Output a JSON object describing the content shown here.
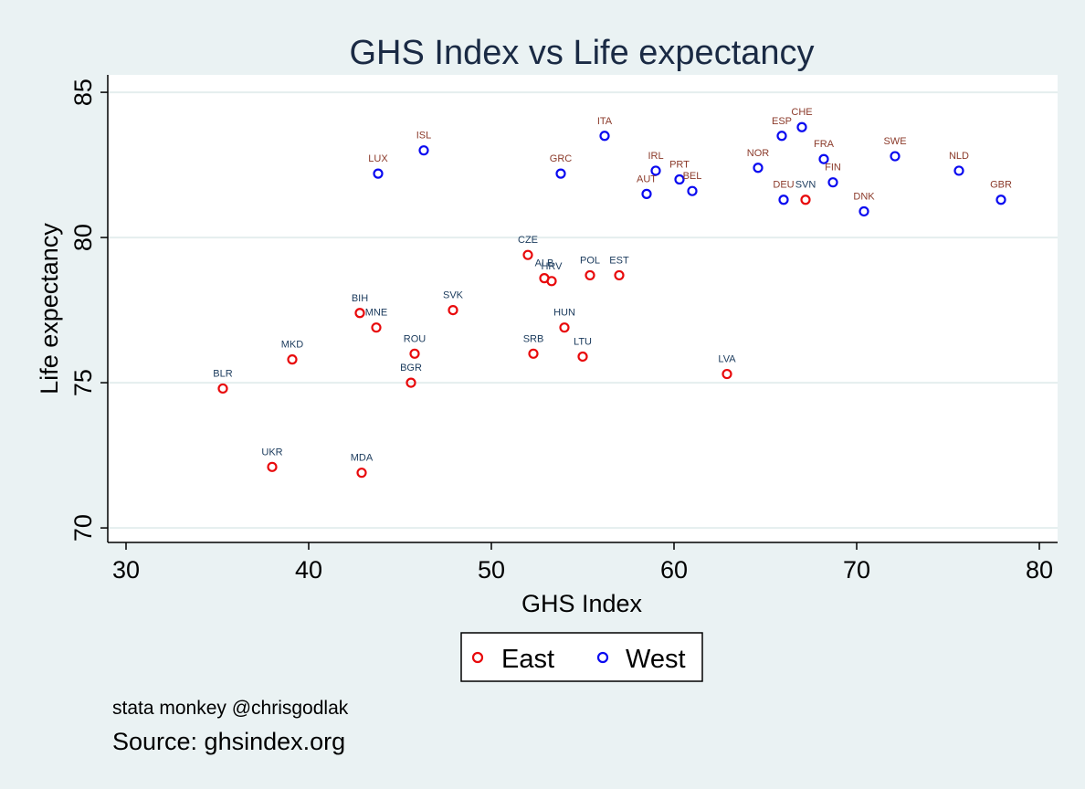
{
  "chart_data": {
    "type": "scatter",
    "title": "GHS Index vs Life expectancy",
    "xlabel": "GHS Index",
    "ylabel": "Life expectancy",
    "xlim": [
      29,
      81
    ],
    "ylim": [
      69.5,
      85.6
    ],
    "xticks": [
      30,
      40,
      50,
      60,
      70,
      80
    ],
    "yticks": [
      70,
      75,
      80,
      85
    ],
    "grid": "horizontal",
    "legend_position": "bottom",
    "series": [
      {
        "name": "East",
        "color": "#e8090b",
        "label_color": "#1a3a5c",
        "points": [
          {
            "label": "BLR",
            "x": 35.3,
            "y": 74.8
          },
          {
            "label": "UKR",
            "x": 38.0,
            "y": 72.1
          },
          {
            "label": "MKD",
            "x": 39.1,
            "y": 75.8
          },
          {
            "label": "BIH",
            "x": 42.8,
            "y": 77.4
          },
          {
            "label": "MDA",
            "x": 42.9,
            "y": 71.9
          },
          {
            "label": "MNE",
            "x": 43.7,
            "y": 76.9
          },
          {
            "label": "BGR",
            "x": 45.6,
            "y": 75.0
          },
          {
            "label": "ROU",
            "x": 45.8,
            "y": 76.0
          },
          {
            "label": "SVK",
            "x": 47.9,
            "y": 77.5
          },
          {
            "label": "CZE",
            "x": 52.0,
            "y": 79.4
          },
          {
            "label": "SRB",
            "x": 52.3,
            "y": 76.0
          },
          {
            "label": "ALB",
            "x": 52.9,
            "y": 78.6
          },
          {
            "label": "HRV",
            "x": 53.3,
            "y": 78.5
          },
          {
            "label": "HUN",
            "x": 54.0,
            "y": 76.9
          },
          {
            "label": "LTU",
            "x": 55.0,
            "y": 75.9
          },
          {
            "label": "POL",
            "x": 55.4,
            "y": 78.7
          },
          {
            "label": "EST",
            "x": 57.0,
            "y": 78.7
          },
          {
            "label": "LVA",
            "x": 62.9,
            "y": 75.3
          },
          {
            "label": "SVN",
            "x": 67.2,
            "y": 81.3
          }
        ]
      },
      {
        "name": "West",
        "color": "#0a0af0",
        "label_color": "#8b3a2a",
        "points": [
          {
            "label": "LUX",
            "x": 43.8,
            "y": 82.2
          },
          {
            "label": "ISL",
            "x": 46.3,
            "y": 83.0
          },
          {
            "label": "GRC",
            "x": 53.8,
            "y": 82.2
          },
          {
            "label": "ITA",
            "x": 56.2,
            "y": 83.5
          },
          {
            "label": "AUT",
            "x": 58.5,
            "y": 81.5
          },
          {
            "label": "IRL",
            "x": 59.0,
            "y": 82.3
          },
          {
            "label": "PRT",
            "x": 60.3,
            "y": 82.0
          },
          {
            "label": "BEL",
            "x": 61.0,
            "y": 81.6
          },
          {
            "label": "NOR",
            "x": 64.6,
            "y": 82.4
          },
          {
            "label": "ESP",
            "x": 65.9,
            "y": 83.5
          },
          {
            "label": "DEU",
            "x": 66.0,
            "y": 81.3
          },
          {
            "label": "CHE",
            "x": 67.0,
            "y": 83.8
          },
          {
            "label": "FRA",
            "x": 68.2,
            "y": 82.7
          },
          {
            "label": "FIN",
            "x": 68.7,
            "y": 81.9
          },
          {
            "label": "DNK",
            "x": 70.4,
            "y": 80.9
          },
          {
            "label": "SWE",
            "x": 72.1,
            "y": 82.8
          },
          {
            "label": "NLD",
            "x": 75.6,
            "y": 82.3
          },
          {
            "label": "GBR",
            "x": 77.9,
            "y": 81.3
          }
        ]
      }
    ]
  },
  "notes": {
    "author": "stata monkey @chrisgodlak",
    "source": "Source: ghsindex.org"
  }
}
